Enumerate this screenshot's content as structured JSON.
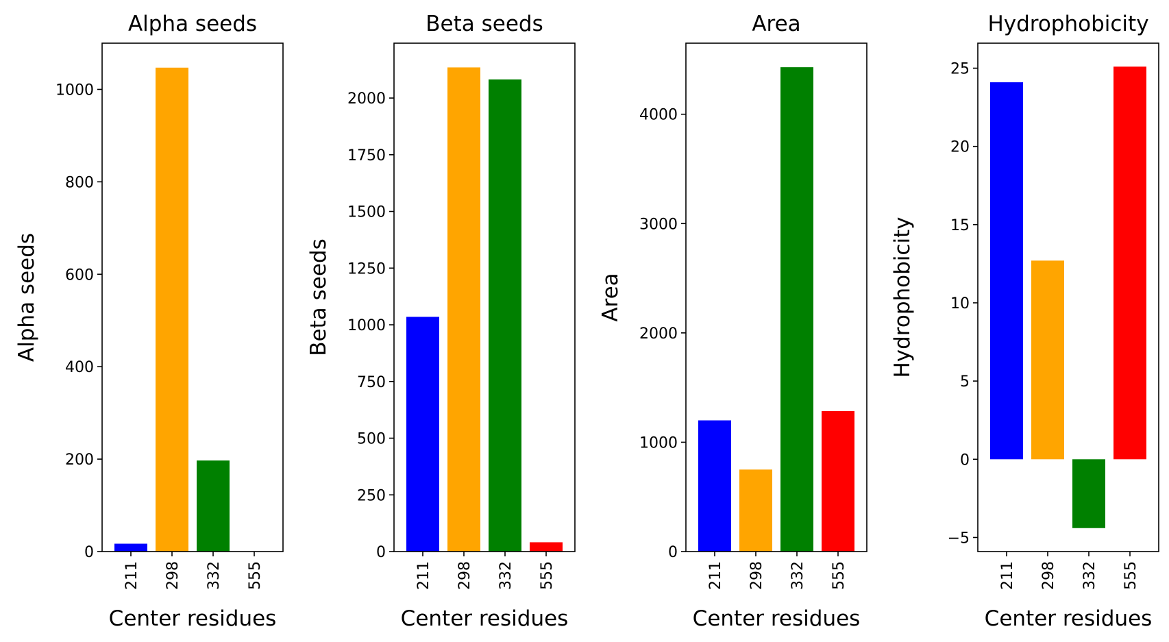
{
  "chart_data": [
    {
      "type": "bar",
      "title": "Alpha seeds",
      "xlabel": "Center residues",
      "ylabel": "Alpha seeds",
      "categories": [
        "211",
        "298",
        "332",
        "555"
      ],
      "values": [
        17,
        1047,
        197,
        0
      ],
      "colors": [
        "#0000ff",
        "#ffa500",
        "#008000",
        "#ff0000"
      ],
      "ylim": [
        0,
        1100
      ],
      "yticks": [
        0,
        200,
        400,
        600,
        800,
        1000
      ],
      "ytick_labels": [
        "0",
        "200",
        "400",
        "600",
        "800",
        "1000"
      ]
    },
    {
      "type": "bar",
      "title": "Beta seeds",
      "xlabel": "Center residues",
      "ylabel": "Beta seeds",
      "categories": [
        "211",
        "298",
        "332",
        "555"
      ],
      "values": [
        1035,
        2135,
        2082,
        41
      ],
      "colors": [
        "#0000ff",
        "#ffa500",
        "#008000",
        "#ff0000"
      ],
      "ylim": [
        0,
        2242
      ],
      "yticks": [
        0,
        250,
        500,
        750,
        1000,
        1250,
        1500,
        1750,
        2000
      ],
      "ytick_labels": [
        "0",
        "250",
        "500",
        "750",
        "1000",
        "1250",
        "1500",
        "1750",
        "2000"
      ]
    },
    {
      "type": "bar",
      "title": "Area",
      "xlabel": "Center residues",
      "ylabel": "Area",
      "categories": [
        "211",
        "298",
        "332",
        "555"
      ],
      "values": [
        1200,
        750,
        4430,
        1285
      ],
      "colors": [
        "#0000ff",
        "#ffa500",
        "#008000",
        "#ff0000"
      ],
      "ylim": [
        0,
        4650
      ],
      "yticks": [
        0,
        1000,
        2000,
        3000,
        4000
      ],
      "ytick_labels": [
        "0",
        "1000",
        "2000",
        "3000",
        "4000"
      ]
    },
    {
      "type": "bar",
      "title": "Hydrophobicity",
      "xlabel": "Center residues",
      "ylabel": "Hydrophobicity",
      "categories": [
        "211",
        "298",
        "332",
        "555"
      ],
      "values": [
        24.1,
        12.7,
        -4.4,
        25.1
      ],
      "colors": [
        "#0000ff",
        "#ffa500",
        "#008000",
        "#ff0000"
      ],
      "ylim": [
        -5.9,
        26.6
      ],
      "yticks": [
        -5,
        0,
        5,
        10,
        15,
        20,
        25
      ],
      "ytick_labels": [
        "−5",
        "0",
        "5",
        "10",
        "15",
        "20",
        "25"
      ]
    }
  ]
}
